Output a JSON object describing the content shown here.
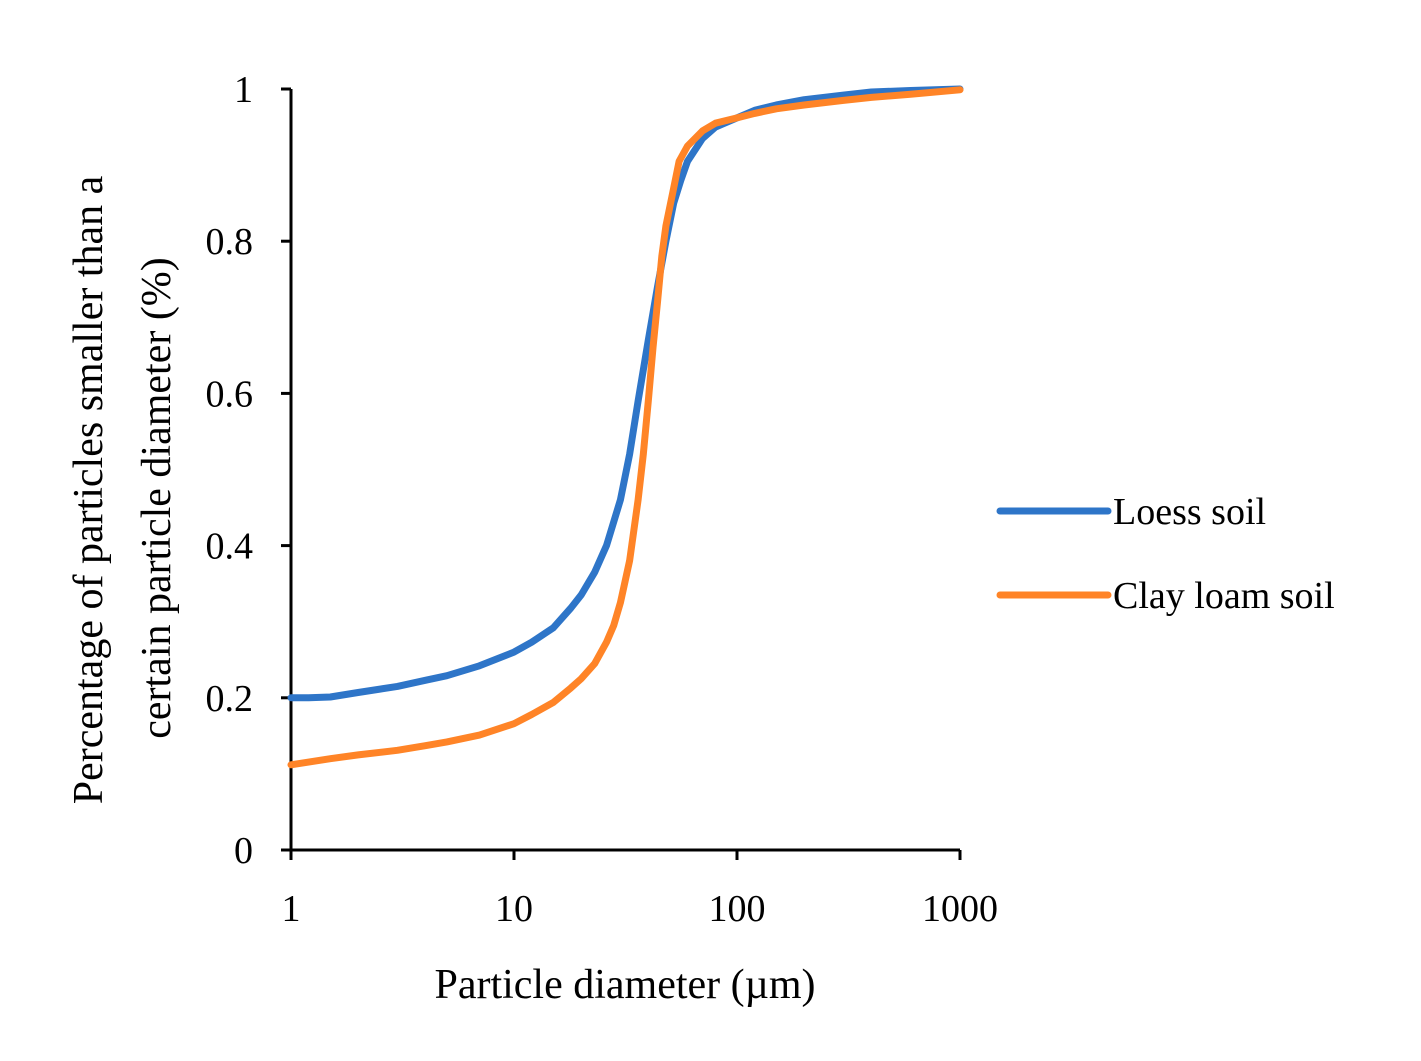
{
  "chart_data": {
    "type": "line",
    "title": "",
    "xlabel": "Particle diameter (µm)",
    "ylabel_lines": [
      "Percentage of particles smaller than a",
      "certain particle diameter (%)"
    ],
    "xscale": "log",
    "xlim": [
      1,
      1000
    ],
    "ylim": [
      0,
      1
    ],
    "xticks": [
      1,
      10,
      100,
      1000
    ],
    "xtick_labels": [
      "1",
      "10",
      "100",
      "1000"
    ],
    "yticks": [
      0,
      0.2,
      0.4,
      0.6,
      0.8,
      1
    ],
    "ytick_labels": [
      "0",
      "0.2",
      "0.4",
      "0.6",
      "0.8",
      "1"
    ],
    "grid": false,
    "legend_position": "right",
    "series": [
      {
        "name": "Loess soil",
        "color": "#2E75C8",
        "points": [
          [
            1,
            0.2
          ],
          [
            1.2,
            0.2
          ],
          [
            1.5,
            0.201
          ],
          [
            2,
            0.207
          ],
          [
            3,
            0.215
          ],
          [
            4,
            0.223
          ],
          [
            5,
            0.229
          ],
          [
            7,
            0.242
          ],
          [
            10,
            0.26
          ],
          [
            12,
            0.273
          ],
          [
            15,
            0.292
          ],
          [
            18,
            0.318
          ],
          [
            20,
            0.335
          ],
          [
            23,
            0.365
          ],
          [
            26,
            0.4
          ],
          [
            30,
            0.46
          ],
          [
            33,
            0.52
          ],
          [
            36,
            0.59
          ],
          [
            40,
            0.67
          ],
          [
            44,
            0.74
          ],
          [
            48,
            0.8
          ],
          [
            52,
            0.85
          ],
          [
            56,
            0.88
          ],
          [
            60,
            0.905
          ],
          [
            70,
            0.935
          ],
          [
            80,
            0.95
          ],
          [
            100,
            0.962
          ],
          [
            120,
            0.972
          ],
          [
            150,
            0.979
          ],
          [
            200,
            0.986
          ],
          [
            300,
            0.992
          ],
          [
            400,
            0.996
          ],
          [
            600,
            0.998
          ],
          [
            1000,
            1.0
          ]
        ]
      },
      {
        "name": "Clay loam soil",
        "color": "#FF8427",
        "points": [
          [
            1,
            0.112
          ],
          [
            1.5,
            0.12
          ],
          [
            2,
            0.125
          ],
          [
            3,
            0.131
          ],
          [
            4,
            0.137
          ],
          [
            5,
            0.142
          ],
          [
            7,
            0.151
          ],
          [
            10,
            0.166
          ],
          [
            12,
            0.178
          ],
          [
            15,
            0.194
          ],
          [
            18,
            0.213
          ],
          [
            20,
            0.225
          ],
          [
            23,
            0.245
          ],
          [
            26,
            0.273
          ],
          [
            28,
            0.295
          ],
          [
            30,
            0.325
          ],
          [
            33,
            0.38
          ],
          [
            36,
            0.46
          ],
          [
            38,
            0.52
          ],
          [
            40,
            0.59
          ],
          [
            42,
            0.66
          ],
          [
            44,
            0.72
          ],
          [
            46,
            0.78
          ],
          [
            48,
            0.82
          ],
          [
            52,
            0.87
          ],
          [
            55,
            0.905
          ],
          [
            60,
            0.925
          ],
          [
            70,
            0.945
          ],
          [
            80,
            0.955
          ],
          [
            100,
            0.962
          ],
          [
            120,
            0.968
          ],
          [
            150,
            0.974
          ],
          [
            200,
            0.979
          ],
          [
            300,
            0.985
          ],
          [
            400,
            0.989
          ],
          [
            600,
            0.993
          ],
          [
            1000,
            0.999
          ]
        ]
      }
    ]
  }
}
